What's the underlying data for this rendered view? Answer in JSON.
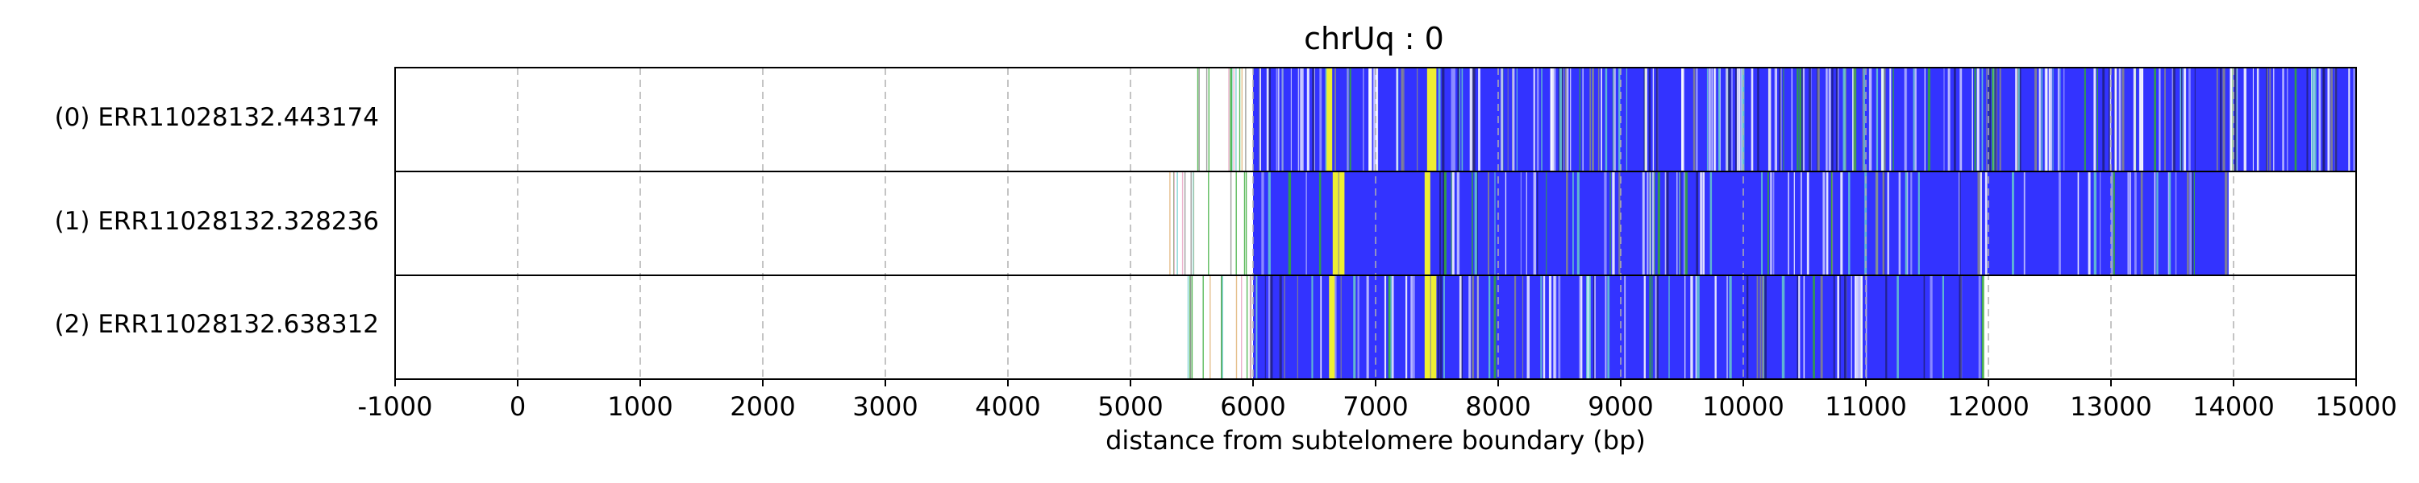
{
  "chart_data": {
    "type": "track",
    "title": "chrUq : 0",
    "xlabel": "distance from subtelomere boundary (bp)",
    "xlim": [
      -1000,
      15000
    ],
    "xticks": [
      -1000,
      0,
      1000,
      2000,
      3000,
      4000,
      5000,
      6000,
      7000,
      8000,
      9000,
      10000,
      11000,
      12000,
      13000,
      14000,
      15000
    ],
    "xtick_labels": [
      "-1000",
      "0",
      "1000",
      "2000",
      "3000",
      "4000",
      "5000",
      "6000",
      "7000",
      "8000",
      "9000",
      "10000",
      "11000",
      "12000",
      "13000",
      "14000",
      "15000"
    ],
    "grid": "vertical dashed",
    "colors": {
      "primary": "#3333ff",
      "highlight_yellow": "#eeee33",
      "accent_green": "#33aa33",
      "accent_cyan": "#66cccc",
      "accent_gray": "#888888",
      "accent_pink": "#e8a0c0",
      "accent_tan": "#e0b070"
    },
    "reads": [
      {
        "label": "(0) ERR11028132.443174",
        "sparse_start": 5450,
        "dense_start": 6000,
        "end": 15000,
        "yellow_positions": [
          6600,
          7420,
          7450
        ]
      },
      {
        "label": "(1) ERR11028132.328236",
        "sparse_start": 5300,
        "dense_start": 6000,
        "end": 13960,
        "yellow_positions": [
          6650,
          6700,
          7400
        ]
      },
      {
        "label": "(2) ERR11028132.638312",
        "sparse_start": 5450,
        "dense_start": 6000,
        "end": 11950,
        "yellow_positions": [
          6620,
          7400,
          7450
        ]
      }
    ]
  }
}
